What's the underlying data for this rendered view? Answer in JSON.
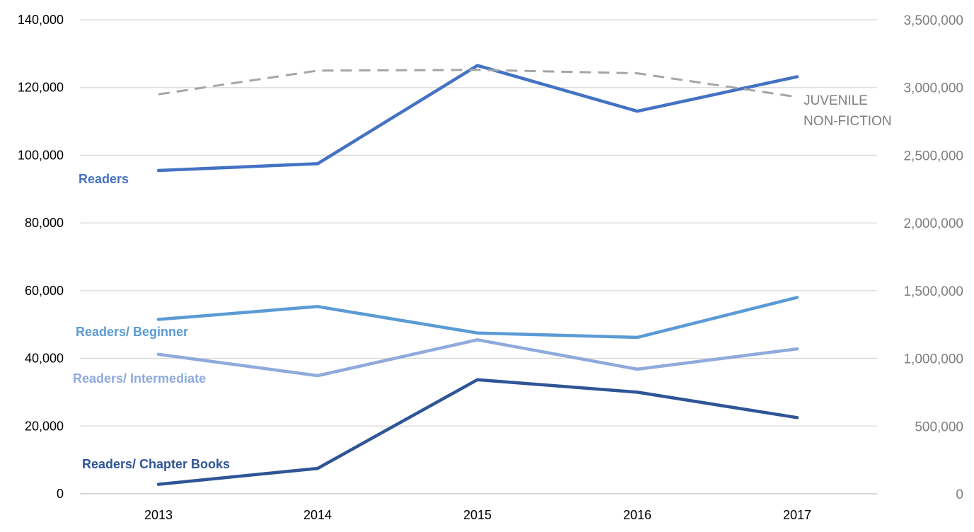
{
  "chart_data": {
    "type": "line",
    "categories": [
      "2013",
      "2014",
      "2015",
      "2016",
      "2017"
    ],
    "y_left": {
      "ylim": [
        0,
        140000
      ],
      "ticks": [
        0,
        20000,
        40000,
        60000,
        80000,
        100000,
        120000,
        140000
      ],
      "tick_labels": [
        "0",
        "20,000",
        "40,000",
        "60,000",
        "80,000",
        "100,000",
        "120,000",
        "140,000"
      ]
    },
    "y_right": {
      "ylim": [
        0,
        3500000
      ],
      "ticks": [
        0,
        500000,
        1000000,
        1500000,
        2000000,
        2500000,
        3000000,
        3500000
      ],
      "tick_labels": [
        "0",
        "500,000",
        "1,000,000",
        "1,500,000",
        "2,000,000",
        "2,500,000",
        "3,000,000",
        "3,500,000"
      ]
    },
    "grid": "horizontal",
    "legend": "inline labels",
    "series": [
      {
        "name": "Readers",
        "axis": "left",
        "color": "#4472c4",
        "dash": "solid",
        "values": [
          95500,
          97500,
          126500,
          113000,
          123200
        ]
      },
      {
        "name": "Readers/ Beginner",
        "axis": "left",
        "color": "#5b9bd5",
        "dash": "solid",
        "values": [
          51500,
          55300,
          47500,
          46200,
          58000
        ]
      },
      {
        "name": "Readers/ Intermediate",
        "axis": "left",
        "color": "#8faadc",
        "dash": "solid",
        "values": [
          41200,
          34900,
          45500,
          36800,
          42800
        ]
      },
      {
        "name": "Readers/ Chapter Books",
        "axis": "left",
        "color": "#2f5597",
        "dash": "solid",
        "values": [
          2800,
          7500,
          33700,
          30000,
          22500
        ]
      },
      {
        "name": "JUVENILE NON-FICTION",
        "label_lines": [
          "JUVENILE",
          "NON-FICTION"
        ],
        "axis": "right",
        "color": "#a5a5a5",
        "dash": "dashed",
        "values": [
          2950000,
          3125000,
          3130000,
          3105000,
          2930000
        ]
      }
    ]
  }
}
